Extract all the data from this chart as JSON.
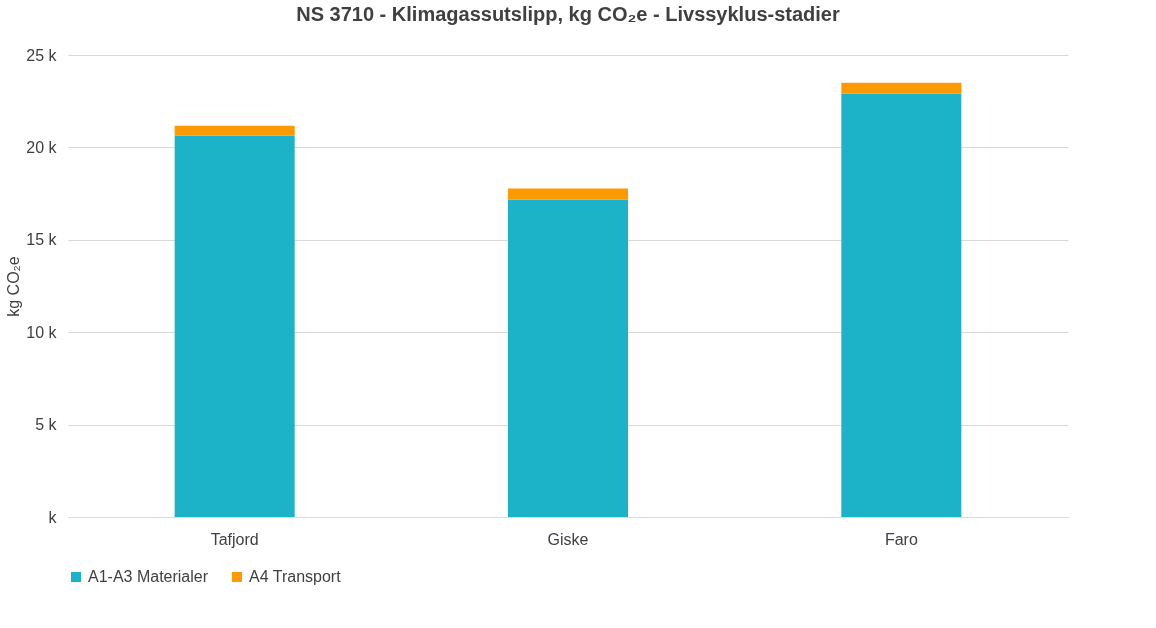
{
  "chart_data": {
    "type": "bar",
    "title": "NS 3710 - Klimagassutslipp, kg CO₂e - Livssyklus-stadier",
    "ylabel": "kg CO₂e",
    "categories": [
      "Tafjord",
      "Giske",
      "Faro"
    ],
    "stacked": true,
    "series": [
      {
        "name": "A1-A3 Materialer",
        "color": "#1cb2c8",
        "values": [
          20650,
          17170,
          22900
        ]
      },
      {
        "name": "A4 Transport",
        "color": "#ff9900",
        "values": [
          520,
          600,
          600
        ]
      }
    ],
    "ylim": [
      0,
      25000
    ],
    "yticks": [
      {
        "value": 0,
        "label": "k"
      },
      {
        "value": 5000,
        "label": "5 k"
      },
      {
        "value": 10000,
        "label": "10 k"
      },
      {
        "value": 15000,
        "label": "15 k"
      },
      {
        "value": 20000,
        "label": "20 k"
      },
      {
        "value": 25000,
        "label": "25 k"
      }
    ],
    "grid": "y",
    "legend": "bottom"
  }
}
